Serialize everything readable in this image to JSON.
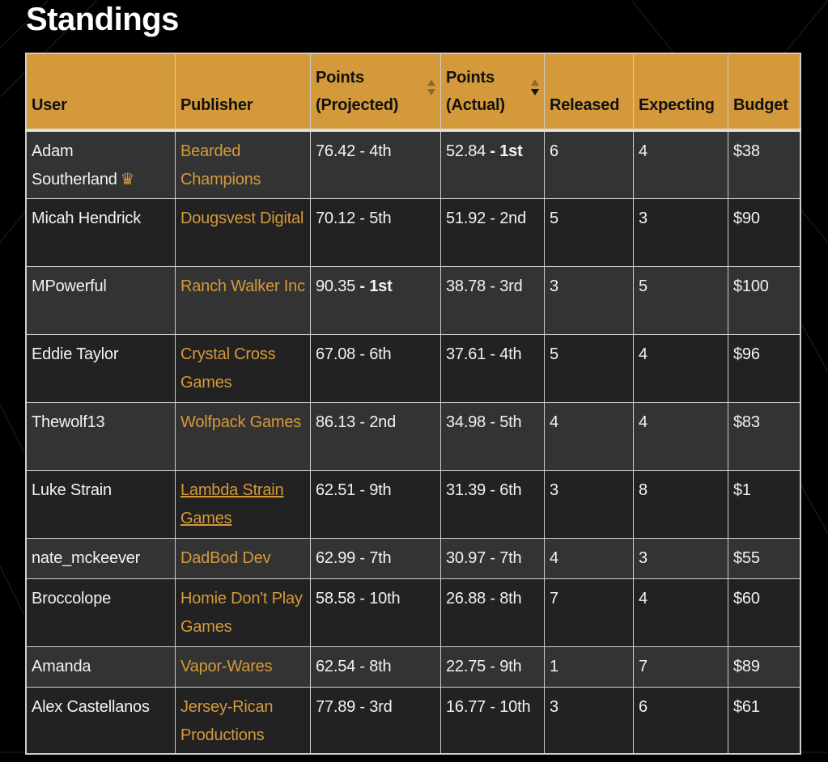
{
  "title": "Standings",
  "columns": {
    "user": "User",
    "publisher": "Publisher",
    "projected_1": "Points",
    "projected_2": "(Projected)",
    "actual_1": "Points",
    "actual_2": "(Actual)",
    "released": "Released",
    "expecting": "Expecting",
    "budget": "Budget"
  },
  "sort": {
    "column": "Points (Actual)",
    "direction": "descending"
  },
  "colors": {
    "accent": "#d4993a",
    "row_odd": "#333333",
    "row_even": "#222222"
  },
  "rows": [
    {
      "user": "Adam Southerland",
      "crown": true,
      "publisher": "Bearded Champions",
      "proj": "76.42",
      "proj_rank": "4th",
      "actual": "52.84",
      "actual_rank": "1st",
      "released": "6",
      "expecting": "4",
      "budget": "$38"
    },
    {
      "user": "Micah Hendrick",
      "publisher": "Dougsvest Digital",
      "proj": "70.12",
      "proj_rank": "5th",
      "actual": "51.92",
      "actual_rank": "2nd",
      "released": "5",
      "expecting": "3",
      "budget": "$90"
    },
    {
      "user": "MPowerful",
      "publisher": "Ranch Walker Inc",
      "proj": "90.35",
      "proj_rank": "1st",
      "actual": "38.78",
      "actual_rank": "3rd",
      "released": "3",
      "expecting": "5",
      "budget": "$100"
    },
    {
      "user": "Eddie Taylor",
      "publisher": "Crystal Cross Games",
      "proj": "67.08",
      "proj_rank": "6th",
      "actual": "37.61",
      "actual_rank": "4th",
      "released": "5",
      "expecting": "4",
      "budget": "$96"
    },
    {
      "user": "Thewolf13",
      "publisher": "Wolfpack Games",
      "proj": "86.13",
      "proj_rank": "2nd",
      "actual": "34.98",
      "actual_rank": "5th",
      "released": "4",
      "expecting": "4",
      "budget": "$83"
    },
    {
      "user": "Luke Strain",
      "publisher": "Lambda Strain Games",
      "underlined": true,
      "proj": "62.51",
      "proj_rank": "9th",
      "actual": "31.39",
      "actual_rank": "6th",
      "released": "3",
      "expecting": "8",
      "budget": "$1"
    },
    {
      "user": "nate_mckeever",
      "publisher": "DadBod Dev",
      "proj": "62.99",
      "proj_rank": "7th",
      "actual": "30.97",
      "actual_rank": "7th",
      "released": "4",
      "expecting": "3",
      "budget": "$55"
    },
    {
      "user": "Broccolope",
      "publisher": "Homie Don't Play Games",
      "proj": "58.58",
      "proj_rank": "10th",
      "actual": "26.88",
      "actual_rank": "8th",
      "released": "7",
      "expecting": "4",
      "budget": "$60"
    },
    {
      "user": "Amanda",
      "publisher": "Vapor-Wares",
      "proj": "62.54",
      "proj_rank": "8th",
      "actual": "22.75",
      "actual_rank": "9th",
      "released": "1",
      "expecting": "7",
      "budget": "$89"
    },
    {
      "user": "Alex Castellanos",
      "publisher": "Jersey-Rican Productions",
      "proj": "77.89",
      "proj_rank": "3rd",
      "actual": "16.77",
      "actual_rank": "10th",
      "released": "3",
      "expecting": "6",
      "budget": "$61"
    }
  ]
}
